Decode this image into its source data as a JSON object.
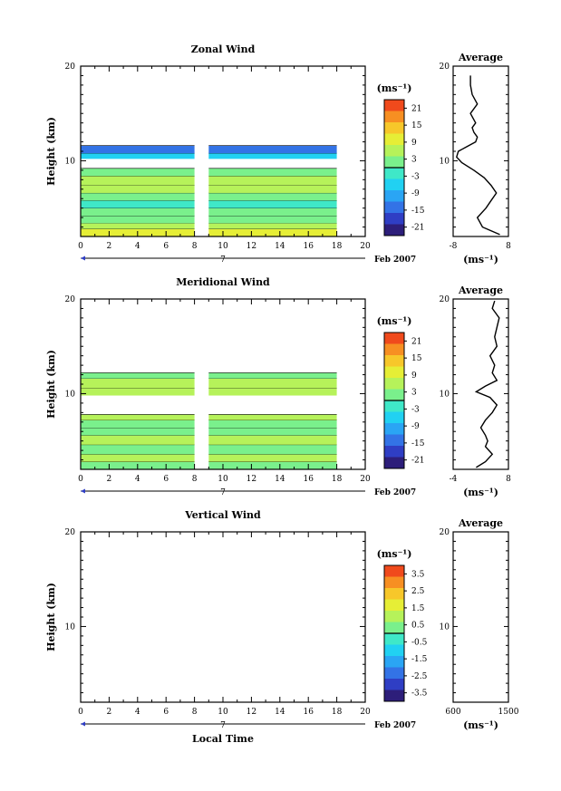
{
  "chart_data": [
    {
      "type": "heatmap",
      "title": "Zonal Wind",
      "xlabel": "",
      "ylabel": "Height (km)",
      "xlim": [
        0,
        20
      ],
      "ylim": [
        2,
        20
      ],
      "xticks": [
        "0",
        "2",
        "4",
        "6",
        "8",
        "10",
        "12",
        "14",
        "16",
        "18",
        "20"
      ],
      "yticks": [
        "10",
        "20"
      ],
      "date_label": "Feb 2007",
      "day_marker": "7",
      "colorbar": {
        "unit": "(ms⁻¹)",
        "range": [
          -24,
          24
        ],
        "ticks": [
          "21",
          "15",
          "9",
          "3",
          "-3",
          "-9",
          "-15",
          "-21"
        ]
      },
      "has_data": true,
      "data_gap_hours": [
        8.0,
        9.0
      ],
      "data_end_hour": 18.0,
      "rows": [
        {
          "z0": 2.0,
          "z1": 2.8,
          "v": 10
        },
        {
          "z0": 2.8,
          "z1": 3.4,
          "v": 6
        },
        {
          "z0": 3.4,
          "z1": 4.2,
          "v": 2
        },
        {
          "z0": 4.2,
          "z1": 5.0,
          "v": 0
        },
        {
          "z0": 5.0,
          "z1": 5.8,
          "v": -2
        },
        {
          "z0": 5.8,
          "z1": 6.6,
          "v": 1
        },
        {
          "z0": 6.6,
          "z1": 7.4,
          "v": 4
        },
        {
          "z0": 7.4,
          "z1": 8.4,
          "v": 6
        },
        {
          "z0": 8.4,
          "z1": 9.2,
          "v": 2
        },
        {
          "z0": 10.2,
          "z1": 10.8,
          "v": -7
        },
        {
          "z0": 10.8,
          "z1": 11.6,
          "v": -13
        }
      ],
      "profile": {
        "xlim": [
          -8,
          8
        ],
        "xticks": [
          "-8",
          "8"
        ],
        "xlabel": "(ms⁻¹)",
        "z": [
          2.2,
          3,
          4,
          5,
          5.8,
          6.6,
          7.4,
          8.2,
          9,
          9.8,
          10.4,
          11,
          11.5,
          12,
          12.5,
          13,
          13.5,
          14,
          15,
          16,
          17,
          18,
          19
        ],
        "u": [
          5.5,
          0.5,
          -1,
          1.5,
          3,
          4.5,
          3,
          1,
          -2,
          -5.5,
          -7,
          -6.5,
          -4,
          -1.5,
          -1,
          -2,
          -2.5,
          -1.5,
          -3,
          -1,
          -2.5,
          -3,
          -3
        ]
      },
      "profile_title": "Average",
      "profile_yticks": [
        "10",
        "20"
      ]
    },
    {
      "type": "heatmap",
      "title": "Meridional Wind",
      "xlabel": "",
      "ylabel": "Height (km)",
      "xlim": [
        0,
        20
      ],
      "ylim": [
        2,
        20
      ],
      "xticks": [
        "0",
        "2",
        "4",
        "6",
        "8",
        "10",
        "12",
        "14",
        "16",
        "18",
        "20"
      ],
      "yticks": [
        "10",
        "20"
      ],
      "date_label": "Feb 2007",
      "day_marker": "7",
      "colorbar": {
        "unit": "(ms⁻¹)",
        "range": [
          -24,
          24
        ],
        "ticks": [
          "21",
          "15",
          "9",
          "3",
          "-3",
          "-9",
          "-15",
          "-21"
        ]
      },
      "has_data": true,
      "data_gap_hours": [
        8.0,
        9.0
      ],
      "data_end_hour": 18.0,
      "rows": [
        {
          "z0": 2.0,
          "z1": 2.8,
          "v": 2
        },
        {
          "z0": 2.8,
          "z1": 3.6,
          "v": 4
        },
        {
          "z0": 3.6,
          "z1": 4.6,
          "v": 1
        },
        {
          "z0": 4.6,
          "z1": 5.6,
          "v": 4
        },
        {
          "z0": 5.6,
          "z1": 6.4,
          "v": 1
        },
        {
          "z0": 6.4,
          "z1": 7.2,
          "v": 3
        },
        {
          "z0": 7.2,
          "z1": 7.8,
          "v": 5
        },
        {
          "z0": 9.8,
          "z1": 10.6,
          "v": 7
        },
        {
          "z0": 10.6,
          "z1": 11.6,
          "v": 4
        },
        {
          "z0": 11.6,
          "z1": 12.2,
          "v": 1
        }
      ],
      "profile": {
        "xlim": [
          -4,
          8
        ],
        "xticks": [
          "-4",
          "8"
        ],
        "xlabel": "(ms⁻¹)",
        "z": [
          2.2,
          2.8,
          3.6,
          4.4,
          5,
          5.6,
          6.4,
          7.2,
          8,
          8.8,
          9.6,
          10.2,
          10.8,
          11.4,
          12.2,
          13,
          14,
          15,
          16,
          17,
          18,
          19,
          19.8
        ],
        "u": [
          1,
          3,
          4.5,
          3,
          3.5,
          3,
          2,
          3,
          4.5,
          5.5,
          4,
          1,
          3,
          5.5,
          4.5,
          5,
          4,
          5.5,
          5,
          5.5,
          6,
          4.5,
          5
        ]
      },
      "profile_title": "Average",
      "profile_yticks": [
        "10",
        "20"
      ]
    },
    {
      "type": "heatmap",
      "title": "Vertical Wind",
      "xlabel": "Local Time",
      "ylabel": "Height (km)",
      "xlim": [
        0,
        20
      ],
      "ylim": [
        2,
        20
      ],
      "xticks": [
        "0",
        "2",
        "4",
        "6",
        "8",
        "10",
        "12",
        "14",
        "16",
        "18",
        "20"
      ],
      "yticks": [
        "10",
        "20"
      ],
      "date_label": "Feb 2007",
      "day_marker": "7",
      "colorbar": {
        "unit": "(ms⁻¹)",
        "range": [
          -4,
          4
        ],
        "ticks": [
          "3.5",
          "2.5",
          "1.5",
          "0.5",
          "-0.5",
          "-1.5",
          "-2.5",
          "-3.5"
        ]
      },
      "has_data": false,
      "rows": [],
      "profile": {
        "xlim": [
          600,
          1500
        ],
        "xticks": [
          "600",
          "1500"
        ],
        "xlabel": "(ms⁻¹)",
        "z": [],
        "u": []
      },
      "profile_title": "Average",
      "profile_yticks": [
        "10",
        "20"
      ]
    }
  ]
}
